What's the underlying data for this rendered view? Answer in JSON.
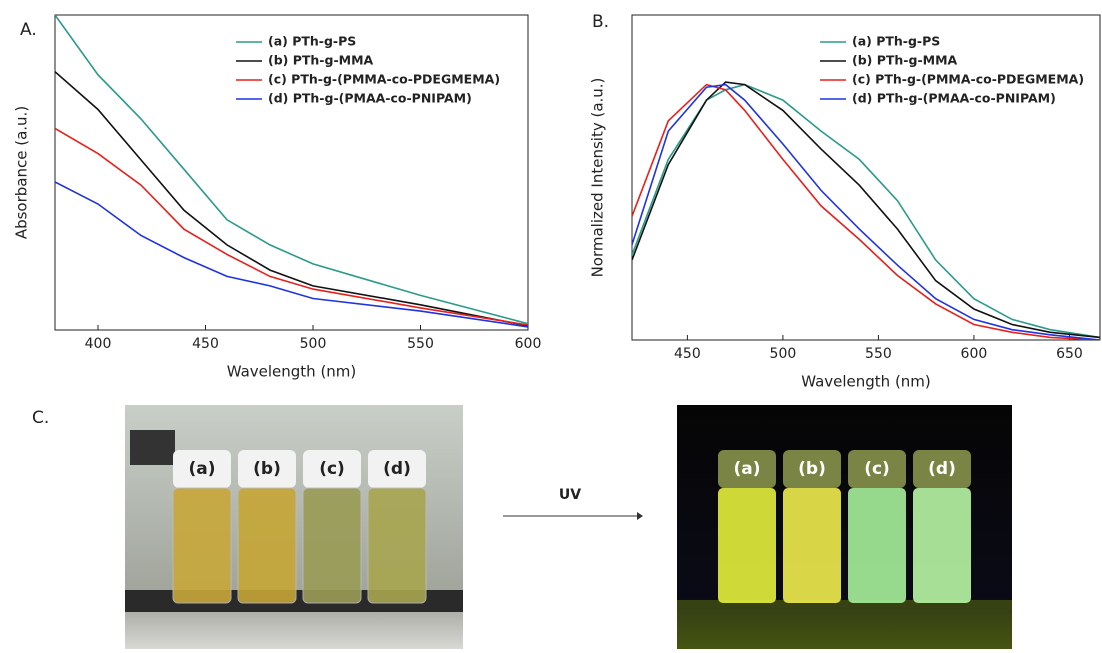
{
  "chart_data": [
    {
      "type": "line",
      "panel": "A.",
      "xlabel": "Wavelength (nm)",
      "ylabel": "Absorbance (a.u.)",
      "x": [
        380,
        400,
        420,
        440,
        460,
        480,
        500,
        550,
        600
      ],
      "xlim": [
        380,
        600
      ],
      "xticks": [
        400,
        450,
        500,
        550,
        600
      ],
      "ylim": [
        0,
        1
      ],
      "series": [
        {
          "name": "(a) PTh-g-PS",
          "color": "#2a9a8a",
          "values": [
            1.0,
            0.81,
            0.67,
            0.51,
            0.35,
            0.27,
            0.21,
            0.11,
            0.02
          ]
        },
        {
          "name": "(b) PTh-g-MMA",
          "color": "#111111",
          "values": [
            0.82,
            0.7,
            0.54,
            0.38,
            0.27,
            0.19,
            0.14,
            0.08,
            0.013
          ]
        },
        {
          "name": "(c) PTh-g-(PMMA-co-PDEGMEMA)",
          "color": "#e8201c",
          "values": [
            0.64,
            0.56,
            0.46,
            0.32,
            0.24,
            0.17,
            0.13,
            0.07,
            0.016
          ]
        },
        {
          "name": "(d) PTh-g-(PMAA-co-PNIPAM)",
          "color": "#1f33e0",
          "values": [
            0.47,
            0.4,
            0.3,
            0.23,
            0.17,
            0.14,
            0.1,
            0.06,
            0.01
          ]
        }
      ]
    },
    {
      "type": "line",
      "panel": "B.",
      "xlabel": "Wavelength (nm)",
      "ylabel": "Normalized Intensity (a.u.)",
      "x": [
        421,
        440,
        460,
        470,
        480,
        500,
        520,
        540,
        560,
        580,
        600,
        620,
        640,
        666
      ],
      "xlim": [
        421,
        666
      ],
      "xticks": [
        450,
        500,
        550,
        600,
        650
      ],
      "ylim": [
        0,
        1.26
      ],
      "series": [
        {
          "name": "(a) PTh-g-PS",
          "color": "#2a9a8a",
          "values": [
            0.33,
            0.7,
            0.93,
            0.97,
            0.99,
            0.93,
            0.81,
            0.7,
            0.54,
            0.31,
            0.16,
            0.08,
            0.04,
            0.01
          ]
        },
        {
          "name": "(b) PTh-g-MMA",
          "color": "#111111",
          "values": [
            0.31,
            0.68,
            0.93,
            1.0,
            0.99,
            0.89,
            0.74,
            0.6,
            0.43,
            0.23,
            0.12,
            0.06,
            0.03,
            0.01
          ]
        },
        {
          "name": "(c) PTh-g-(PMMA-co-PDEGMEMA)",
          "color": "#e8201c",
          "values": [
            0.48,
            0.85,
            0.99,
            0.97,
            0.89,
            0.7,
            0.52,
            0.39,
            0.25,
            0.14,
            0.06,
            0.03,
            0.01,
            0.0
          ]
        },
        {
          "name": "(d) PTh-g-(PMAA-co-PNIPAM)",
          "color": "#1f33e0",
          "values": [
            0.37,
            0.81,
            0.98,
            0.99,
            0.93,
            0.76,
            0.58,
            0.43,
            0.29,
            0.16,
            0.08,
            0.04,
            0.02,
            0.0
          ]
        }
      ]
    }
  ],
  "panel_c": {
    "label": "C.",
    "arrow_label": "UV",
    "left_vials": [
      "(a)",
      "(b)",
      "(c)",
      "(d)"
    ],
    "right_vials": [
      "(a)",
      "(b)",
      "(c)",
      "(d)"
    ]
  }
}
